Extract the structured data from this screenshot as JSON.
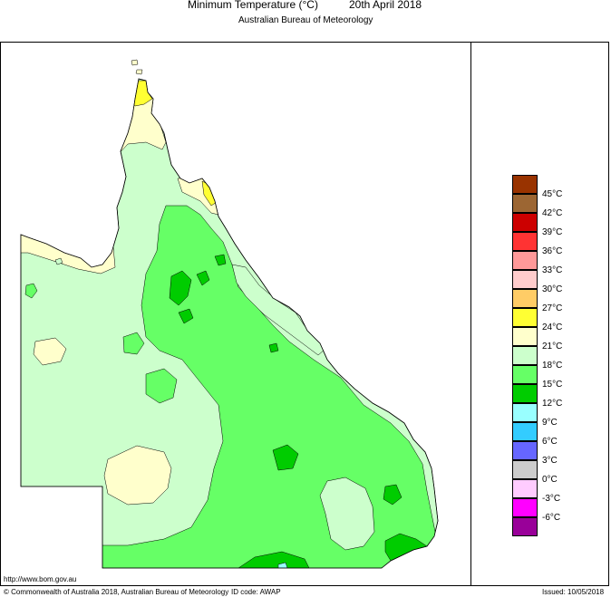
{
  "header": {
    "title": "Minimum Temperature (°C)",
    "date": "20th April 2018",
    "subtitle": "Australian Bureau of Meteorology"
  },
  "legend": {
    "items": [
      {
        "label": "45°C",
        "color": "#993300"
      },
      {
        "label": "42°C",
        "color": "#9c6633"
      },
      {
        "label": "39°C",
        "color": "#cc0000"
      },
      {
        "label": "36°C",
        "color": "#ff3333"
      },
      {
        "label": "33°C",
        "color": "#ff9999"
      },
      {
        "label": "30°C",
        "color": "#ffcccc"
      },
      {
        "label": "27°C",
        "color": "#ffcc66"
      },
      {
        "label": "24°C",
        "color": "#ffff33"
      },
      {
        "label": "21°C",
        "color": "#ffffcc"
      },
      {
        "label": "18°C",
        "color": "#ccffcc"
      },
      {
        "label": "15°C",
        "color": "#66ff66"
      },
      {
        "label": "12°C",
        "color": "#00cc00"
      },
      {
        "label": "9°C",
        "color": "#99ffff"
      },
      {
        "label": "6°C",
        "color": "#33ccff"
      },
      {
        "label": "3°C",
        "color": "#6666ff"
      },
      {
        "label": "0°C",
        "color": "#cccccc"
      },
      {
        "label": "-3°C",
        "color": "#ffccff"
      },
      {
        "label": "-6°C",
        "color": "#ff00ff"
      },
      {
        "label": "",
        "color": "#990099"
      }
    ]
  },
  "footer": {
    "url": "http://www.bom.gov.au",
    "copyright": "© Commonwealth of Australia 2018, Australian Bureau of Meteorology",
    "id_code": "ID code: AWAP",
    "issued": "Issued: 10/05/2018"
  }
}
